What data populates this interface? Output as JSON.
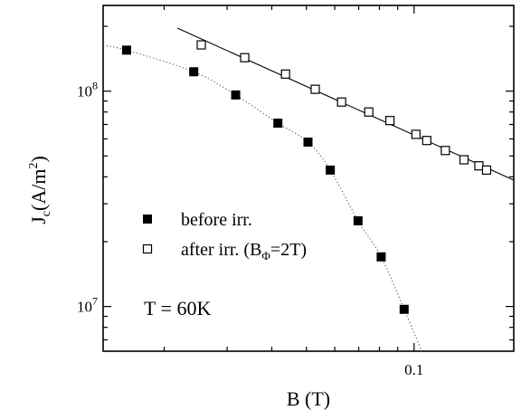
{
  "chart_data": {
    "type": "scatter",
    "title": "",
    "xlabel": "B (T)",
    "ylabel": {
      "main": "J",
      "sub": "c",
      "unit": "(A/m",
      "sup": "2",
      "close": ")"
    },
    "x_scale": "log",
    "y_scale": "log",
    "xlim": [
      0.0135,
      0.19
    ],
    "ylim": [
      6200000,
      250000000
    ],
    "x_ticks": [
      {
        "value": 0.1,
        "label": "0.1"
      }
    ],
    "y_ticks": [
      {
        "value": 10000000,
        "base": "10",
        "exp": "7"
      },
      {
        "value": 100000000,
        "base": "10",
        "exp": "8"
      }
    ],
    "grid": false,
    "legend_position": "left-middle",
    "series": [
      {
        "name": "before irr.",
        "marker": "filled-square",
        "fit_line": "dotted",
        "x": [
          0.0157,
          0.0242,
          0.0317,
          0.0416,
          0.0505,
          0.0583,
          0.0697,
          0.0809,
          0.0938
        ],
        "y": [
          155000000,
          123000000,
          96000000,
          71000000,
          58000000,
          43000000,
          25000000,
          17000000,
          9700000
        ]
      },
      {
        "name": "after irr.",
        "name_suffix": {
          "open": "(B",
          "sub": "Φ",
          "close": "=2T)"
        },
        "marker": "open-square",
        "fit_line": "solid",
        "x": [
          0.0254,
          0.0336,
          0.0437,
          0.0529,
          0.0627,
          0.0747,
          0.0856,
          0.1012,
          0.1085,
          0.1223,
          0.1379,
          0.1518,
          0.1595
        ],
        "y": [
          164000000,
          143000000,
          120000000,
          102000000,
          89000000,
          80000000,
          73000000,
          63000000,
          59000000,
          53000000,
          48000000,
          45000000,
          43000000
        ]
      }
    ],
    "annotations": [
      "T = 60K"
    ]
  }
}
